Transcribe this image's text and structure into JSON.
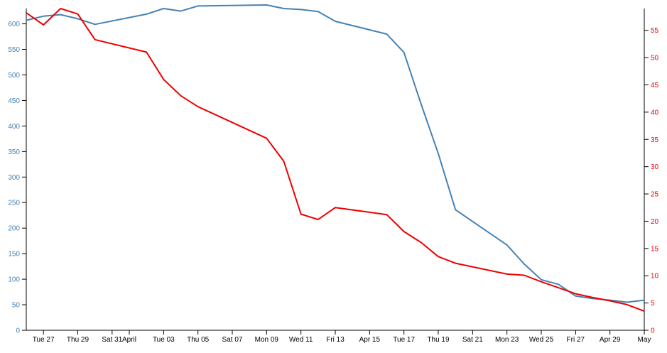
{
  "chart_data": {
    "type": "line",
    "title": "",
    "xlabel": "",
    "ylabel_left": "",
    "ylabel_right": "",
    "colors": {
      "left_axis": "#4682b4",
      "right_axis": "#ee0000",
      "axis_line": "#000000"
    },
    "grid": false,
    "x_ticks": [
      "Tue 27",
      "Thu 29",
      "Sat 31",
      "April",
      "Tue 03",
      "Thu 05",
      "Sat 07",
      "Mon 09",
      "Wed 11",
      "Fri 13",
      "Apr 15",
      "Tue 17",
      "Thu 19",
      "Sat 21",
      "Mon 23",
      "Wed 25",
      "Fri 27",
      "Apr 29",
      "May"
    ],
    "x_tick_dates": [
      "2018-03-27",
      "2018-03-29",
      "2018-03-31",
      "2018-04-01",
      "2018-04-03",
      "2018-04-05",
      "2018-04-07",
      "2018-04-09",
      "2018-04-11",
      "2018-04-13",
      "2018-04-15",
      "2018-04-17",
      "2018-04-19",
      "2018-04-21",
      "2018-04-23",
      "2018-04-25",
      "2018-04-27",
      "2018-04-29",
      "2018-05-01"
    ],
    "xlim": [
      "2018-03-26",
      "2018-05-01"
    ],
    "y_left": {
      "ylim": [
        0,
        630
      ],
      "ticks": [
        0,
        50,
        100,
        150,
        200,
        250,
        300,
        350,
        400,
        450,
        500,
        550,
        600
      ]
    },
    "y_right": {
      "ylim": [
        0,
        59
      ],
      "ticks": [
        0,
        5,
        10,
        15,
        20,
        25,
        30,
        35,
        40,
        45,
        50,
        55
      ]
    },
    "series": [
      {
        "axis": "left",
        "color": "#4682b4",
        "points": [
          [
            "2018-03-26",
            607
          ],
          [
            "2018-03-27",
            615
          ],
          [
            "2018-03-28",
            618
          ],
          [
            "2018-03-29",
            610
          ],
          [
            "2018-03-30",
            599
          ],
          [
            "2018-04-02",
            619
          ],
          [
            "2018-04-03",
            630
          ],
          [
            "2018-04-04",
            625
          ],
          [
            "2018-04-05",
            635
          ],
          [
            "2018-04-09",
            637
          ],
          [
            "2018-04-10",
            630
          ],
          [
            "2018-04-11",
            628
          ],
          [
            "2018-04-12",
            624
          ],
          [
            "2018-04-13",
            605
          ],
          [
            "2018-04-16",
            580
          ],
          [
            "2018-04-17",
            544
          ],
          [
            "2018-04-18",
            443
          ],
          [
            "2018-04-19",
            346
          ],
          [
            "2018-04-20",
            236
          ],
          [
            "2018-04-23",
            167
          ],
          [
            "2018-04-24",
            130
          ],
          [
            "2018-04-25",
            99
          ],
          [
            "2018-04-26",
            90
          ],
          [
            "2018-04-27",
            67
          ],
          [
            "2018-04-28",
            62
          ],
          [
            "2018-04-29",
            59
          ],
          [
            "2018-04-30",
            55
          ],
          [
            "2018-05-01",
            59
          ]
        ]
      },
      {
        "axis": "right",
        "color": "#ee0000",
        "points": [
          [
            "2018-03-26",
            58.2
          ],
          [
            "2018-03-27",
            56
          ],
          [
            "2018-03-28",
            59
          ],
          [
            "2018-03-29",
            58
          ],
          [
            "2018-03-30",
            53.3
          ],
          [
            "2018-04-02",
            51
          ],
          [
            "2018-04-03",
            46
          ],
          [
            "2018-04-04",
            43
          ],
          [
            "2018-04-05",
            41
          ],
          [
            "2018-04-09",
            35.2
          ],
          [
            "2018-04-10",
            31
          ],
          [
            "2018-04-11",
            21.3
          ],
          [
            "2018-04-12",
            20.3
          ],
          [
            "2018-04-13",
            22.5
          ],
          [
            "2018-04-16",
            21.2
          ],
          [
            "2018-04-17",
            18.1
          ],
          [
            "2018-04-18",
            16.1
          ],
          [
            "2018-04-19",
            13.5
          ],
          [
            "2018-04-20",
            12.3
          ],
          [
            "2018-04-23",
            10.3
          ],
          [
            "2018-04-24",
            10.1
          ],
          [
            "2018-04-25",
            8.9
          ],
          [
            "2018-04-26",
            7.8
          ],
          [
            "2018-04-27",
            6.7
          ],
          [
            "2018-04-28",
            6.0
          ],
          [
            "2018-04-29",
            5.4
          ],
          [
            "2018-04-30",
            4.7
          ],
          [
            "2018-05-01",
            3.5
          ]
        ]
      }
    ]
  }
}
